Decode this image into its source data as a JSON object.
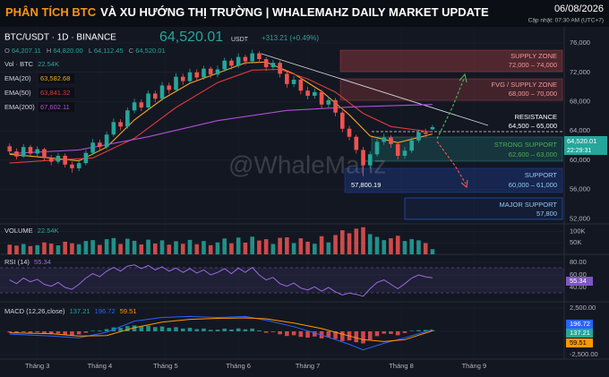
{
  "header": {
    "title_highlight": "PHÂN TÍCH BTC",
    "title_rest": "VÀ XU HƯỚNG THỊ TRƯỜNG  |  WHALEMAHZ DAILY MARKET UPDATE",
    "date": "06/08/2026",
    "updated": "Cập nhật: 07:30 AM (UTC+7)"
  },
  "watermark": "@WhaleMahz",
  "chart_data": [
    {
      "type": "candlestick",
      "symbol": "BTC/USDT · 1D · BINANCE",
      "last_price": "64,520.01",
      "currency": "USDT",
      "change": "+313.21 (+0.49%)",
      "countdown": "22:29:31",
      "ohlc_legend": [
        {
          "key": "O",
          "text": "64,207.11"
        },
        {
          "key": "H",
          "text": "64,820.00"
        },
        {
          "key": "L",
          "text": "64,112.45"
        },
        {
          "key": "C",
          "text": "64,520.01"
        }
      ],
      "vol_legend": {
        "name": "Vol · BTC",
        "value": "22.54K"
      },
      "up_color": "#26a69a",
      "down_color": "#ef5350",
      "open": [
        61900,
        61200,
        60500,
        61800,
        60900,
        61500,
        60300,
        59800,
        60600,
        59400,
        58900,
        59600,
        61000,
        62400,
        61800,
        63500,
        65200,
        64600,
        66800,
        67900,
        67200,
        69100,
        68400,
        70200,
        69600,
        71400,
        70800,
        72000,
        71300,
        72500,
        71700,
        72400,
        73600,
        72900,
        74100,
        73500,
        74600,
        73800,
        72700,
        73300,
        71800,
        70400,
        71000,
        69500,
        68800,
        69300,
        67600,
        68200,
        66500,
        64300,
        63200,
        61400,
        59300,
        60800,
        62500,
        63100,
        62200,
        60600,
        61300,
        62700,
        63800,
        64207.11
      ],
      "high": [
        62300,
        61600,
        62200,
        62100,
        61900,
        61700,
        60700,
        61000,
        60900,
        59800,
        60100,
        61400,
        62900,
        62800,
        63900,
        65700,
        65600,
        67200,
        68400,
        68300,
        69500,
        69500,
        70700,
        70600,
        71900,
        71800,
        72500,
        72400,
        72900,
        72800,
        72900,
        74000,
        73900,
        74600,
        74400,
        75100,
        74900,
        74100,
        73700,
        73600,
        72100,
        71500,
        71300,
        70000,
        69800,
        69600,
        68700,
        68500,
        66800,
        64700,
        63500,
        61800,
        61200,
        62900,
        63600,
        63400,
        62500,
        61800,
        63100,
        64200,
        64300,
        64820
      ],
      "low": [
        60900,
        60100,
        60300,
        60600,
        60500,
        59900,
        59300,
        59500,
        59000,
        58300,
        58500,
        59300,
        60700,
        61300,
        61500,
        63200,
        64100,
        64300,
        66400,
        66700,
        66900,
        67900,
        68100,
        69100,
        69300,
        70300,
        70500,
        70800,
        71000,
        71200,
        71300,
        72100,
        72400,
        72600,
        73000,
        73200,
        73300,
        72200,
        72300,
        71300,
        69900,
        70000,
        69000,
        68300,
        68400,
        67100,
        67200,
        66000,
        63800,
        62700,
        60900,
        57800.19,
        58900,
        60500,
        62100,
        61700,
        60100,
        60200,
        61000,
        62400,
        63100,
        64112.45
      ],
      "close": [
        61200,
        60500,
        61800,
        60900,
        61500,
        60300,
        59800,
        60600,
        59400,
        58900,
        59600,
        61000,
        62400,
        61800,
        63500,
        65200,
        64600,
        66800,
        67900,
        67200,
        69100,
        68400,
        70200,
        69600,
        71400,
        70800,
        72000,
        71300,
        72500,
        71700,
        72400,
        73600,
        72900,
        74100,
        73500,
        74600,
        73800,
        72700,
        73300,
        71800,
        70400,
        71000,
        69500,
        68800,
        69300,
        67600,
        68200,
        66500,
        64300,
        63200,
        61400,
        59300,
        60800,
        62500,
        63100,
        62200,
        60600,
        61300,
        62700,
        63800,
        63600,
        64520.01
      ],
      "lines": [
        {
          "name": "EMA(20)",
          "color": "#f5a623",
          "legend_value": "63,582.68",
          "x": [
            0,
            6,
            10,
            14,
            18,
            22,
            26,
            30,
            34,
            37,
            41,
            45,
            49,
            52,
            56,
            61
          ],
          "values": [
            60800,
            60300,
            59900,
            61800,
            65500,
            68300,
            70500,
            71900,
            73300,
            73400,
            71800,
            69400,
            66200,
            63300,
            62400,
            63582.68
          ]
        },
        {
          "name": "EMA(50)",
          "color": "#e0393e",
          "legend_value": "63,841.32",
          "x": [
            0,
            6,
            12,
            18,
            24,
            30,
            35,
            39,
            43,
            47,
            51,
            55,
            61
          ],
          "values": [
            59600,
            60000,
            60300,
            63000,
            67200,
            70600,
            72300,
            72400,
            71100,
            69300,
            66400,
            64600,
            63841.32
          ]
        },
        {
          "name": "EMA(200)",
          "color": "#b04fd8",
          "legend_value": "67,602.11",
          "x": [
            0,
            10,
            20,
            30,
            40,
            50,
            61
          ],
          "values": [
            60900,
            61400,
            63200,
            65400,
            66800,
            67300,
            67602.11
          ]
        }
      ],
      "ylim": [
        51300,
        77600
      ],
      "yticks": [
        {
          "value": 76000,
          "label": "76,000"
        },
        {
          "value": 72000,
          "label": "72,000"
        },
        {
          "value": 68000,
          "label": "68,000"
        },
        {
          "value": 64000,
          "label": "64,000"
        },
        {
          "value": 60000,
          "label": "60,000"
        },
        {
          "value": 56000,
          "label": "56,000"
        },
        {
          "value": 52000,
          "label": "52,000"
        }
      ],
      "zones": [
        {
          "title": "SUPPLY ZONE",
          "range": "72,000 – 74,000"
        },
        {
          "title": "FVG / SUPPLY ZONE",
          "range": "68,000 – 70,000"
        },
        {
          "title": "RESISTANCE",
          "range": "64,500 – 65,000"
        },
        {
          "title": "STRONG SUPPORT",
          "range": "62,600 – 63,000"
        },
        {
          "title": "SUPPORT",
          "range": "60,000 – 61,000"
        },
        {
          "title": "MAJOR SUPPORT",
          "range": "57,800"
        }
      ],
      "low_label": "57,800.19"
    },
    {
      "type": "bar",
      "title": "VOLUME",
      "legend_value": "22.54K",
      "values": [
        42000,
        38000,
        45000,
        36000,
        40000,
        52000,
        47000,
        39000,
        55000,
        48000,
        44000,
        58000,
        62000,
        41000,
        66000,
        71000,
        45000,
        68000,
        59000,
        43000,
        64000,
        47000,
        61000,
        42000,
        57000,
        46000,
        63000,
        44000,
        58000,
        40000,
        52000,
        69000,
        48000,
        73000,
        51000,
        77000,
        60000,
        66000,
        45000,
        72000,
        74000,
        49000,
        70000,
        55000,
        46000,
        79000,
        52000,
        84000,
        105000,
        92000,
        112000,
        118000,
        88000,
        76000,
        62000,
        70000,
        81000,
        58000,
        66000,
        61000,
        49000,
        22540
      ],
      "ylim": [
        0,
        125000
      ],
      "yticks": [
        {
          "value": 100000,
          "label": "100K"
        },
        {
          "value": 50000,
          "label": "50K"
        }
      ]
    },
    {
      "type": "line",
      "title": "RSI (14)",
      "color": "#9c6ade",
      "values": [
        52,
        46,
        55,
        49,
        53,
        45,
        42,
        48,
        40,
        37,
        45,
        55,
        62,
        57,
        66,
        72,
        66,
        74,
        76,
        70,
        75,
        68,
        73,
        66,
        71,
        64,
        70,
        63,
        68,
        60,
        64,
        70,
        62,
        71,
        64,
        72,
        60,
        52,
        56,
        46,
        42,
        47,
        39,
        36,
        41,
        34,
        40,
        33,
        28,
        31,
        29,
        26,
        38,
        48,
        52,
        45,
        38,
        46,
        55,
        60,
        57,
        55.34
      ],
      "ylim": [
        20,
        90
      ],
      "yticks": [
        {
          "value": 80,
          "label": "80.00"
        },
        {
          "value": 60,
          "label": "60.00"
        },
        {
          "value": 40,
          "label": "40.00"
        }
      ]
    },
    {
      "type": "macd",
      "title": "MACD (12,26,close)",
      "up_color": "#26a69a",
      "down_color": "#ef5350",
      "histogram": [
        -120,
        -180,
        -90,
        -150,
        -110,
        -220,
        -300,
        -240,
        -350,
        -420,
        -330,
        -150,
        60,
        80,
        240,
        420,
        380,
        560,
        640,
        520,
        600,
        460,
        520,
        380,
        450,
        300,
        380,
        240,
        300,
        160,
        180,
        300,
        200,
        320,
        220,
        300,
        100,
        -150,
        -80,
        -320,
        -500,
        -420,
        -600,
        -680,
        -560,
        -760,
        -640,
        -820,
        -1050,
        -980,
        -1180,
        -1300,
        -900,
        -520,
        -250,
        -280,
        -420,
        -180,
        60,
        120,
        150,
        137.21
      ],
      "macd": {
        "color": "#2962ff",
        "x": [
          0,
          6,
          10,
          14,
          18,
          22,
          26,
          30,
          34,
          37,
          41,
          45,
          49,
          51,
          54,
          57,
          61
        ],
        "values": [
          -300,
          -500,
          -700,
          -100,
          1100,
          1500,
          1600,
          1500,
          1600,
          1200,
          500,
          -400,
          -1400,
          -2000,
          -1300,
          -700,
          196.72
        ]
      },
      "signal": {
        "color": "#ff9800",
        "x": [
          0,
          6,
          10,
          14,
          18,
          22,
          26,
          30,
          34,
          37,
          41,
          45,
          49,
          51,
          54,
          57,
          61
        ],
        "values": [
          -150,
          -250,
          -500,
          -450,
          400,
          1000,
          1300,
          1400,
          1450,
          1350,
          900,
          300,
          -500,
          -900,
          -1100,
          -900,
          59.51
        ]
      },
      "ylim": [
        -2900,
        2900
      ],
      "yticks": [
        {
          "value": 2500,
          "label": "2,500.00"
        },
        {
          "value": 0,
          "label": "0.00"
        },
        {
          "value": -2500,
          "label": "-2,500.00"
        }
      ],
      "xlim": [
        -1,
        80
      ],
      "xticks": [
        {
          "value": 4,
          "label": "Tháng 3"
        },
        {
          "value": 13,
          "label": "Tháng 4"
        },
        {
          "value": 22.5,
          "label": "Tháng 5"
        },
        {
          "value": 33,
          "label": "Tháng 6"
        },
        {
          "value": 43,
          "label": "Tháng 7"
        },
        {
          "value": 56.5,
          "label": "Tháng 8"
        },
        {
          "value": 67,
          "label": "Tháng 9"
        }
      ]
    }
  ]
}
